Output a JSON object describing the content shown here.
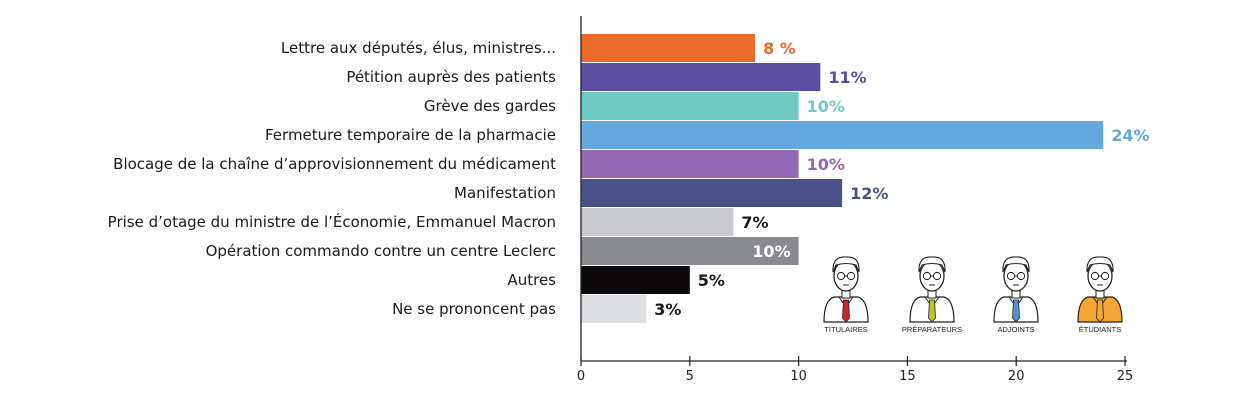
{
  "chart_data": {
    "type": "bar",
    "orientation": "horizontal",
    "categories": [
      "Lettre aux députés, élus, ministres...",
      "Pétition auprès des patients",
      "Grève des gardes",
      "Fermeture temporaire de la pharmacie",
      "Blocage de la chaîne d’approvisionnement du médicament",
      "Manifestation",
      "Prise d’otage du ministre de l’Économie, Emmanuel Macron",
      "Opération commando contre un centre Leclerc",
      "Autres",
      "Ne se prononcent pas"
    ],
    "values": [
      8,
      11,
      10,
      24,
      10,
      12,
      7,
      10,
      5,
      3
    ],
    "value_labels": [
      "8 %",
      "11%",
      "10%",
      "24%",
      "10%",
      "12%",
      "7%",
      "10%",
      "5%",
      "3%"
    ],
    "bar_colors": [
      "#ee6a2c",
      "#5b4ea3",
      "#6fcac4",
      "#61a9df",
      "#9368b4",
      "#4a5289",
      "#c8c9cc",
      "#898a8d",
      "#0b0809",
      "#dcdee1"
    ],
    "label_colors": [
      "#ee6a2c",
      "#5b4ea3",
      "#6fcac4",
      "#61a9df",
      "#9368b4",
      "#4a5289",
      "#1a1a1a",
      "#ffffff",
      "#1a1a1a",
      "#1a1a1a"
    ],
    "label_inside": [
      false,
      false,
      false,
      false,
      false,
      false,
      false,
      true,
      false,
      false
    ],
    "xlim": [
      0,
      25
    ],
    "xticks": [
      0,
      5,
      10,
      15,
      20,
      25
    ],
    "xlabel": "",
    "ylabel": "",
    "title": ""
  },
  "legend": {
    "people": [
      {
        "label": "TITULAIRES",
        "icon": "titulaire-icon",
        "hair": "#ffffff",
        "shirt": "#ffffff",
        "tie": "#c8282d",
        "fill": "#ffffff"
      },
      {
        "label": "PRÉPARATEURS",
        "icon": "preparateur-icon",
        "hair": "#ffffff",
        "shirt": "#ffffff",
        "tie": "#b9c832",
        "fill": "#ffffff"
      },
      {
        "label": "ADJOINTS",
        "icon": "adjoint-icon",
        "hair": "#ffffff",
        "shirt": "#ffffff",
        "tie": "#5a8fcf",
        "fill": "#ffffff"
      },
      {
        "label": "ÉTUDIANTS",
        "icon": "etudiant-icon",
        "hair": "#ffffff",
        "shirt": "#f4a533",
        "tie": "#f4a533",
        "fill": "#ffffff"
      }
    ]
  }
}
